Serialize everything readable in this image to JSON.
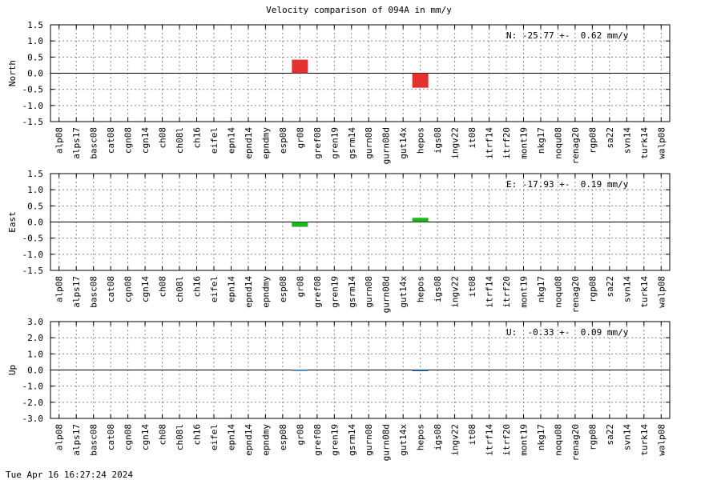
{
  "title": "Velocity comparison of 094A in mm/y",
  "footer": "Tue Apr 16 16:27:24 2024",
  "chart_data": [
    {
      "type": "bar",
      "ylabel": "North",
      "annotation": "N: -25.77 +-  0.62 mm/y",
      "ylim": [
        -1.5,
        1.5
      ],
      "yticks": [
        "1.5",
        "1.0",
        "0.5",
        "0.0",
        "-0.5",
        "-1.0",
        "-1.5"
      ],
      "color": "#e53030",
      "grid": true,
      "categories": [
        "alp08",
        "alps17",
        "basc08",
        "cat08",
        "cgn08",
        "cgn14",
        "ch08",
        "ch08l",
        "ch16",
        "eifel",
        "epn14",
        "epnd14",
        "epndmy",
        "esp08",
        "gr08",
        "gref08",
        "gren19",
        "gsrm14",
        "gurn08",
        "gurn08d",
        "gut14x",
        "hepos",
        "igs08",
        "ingv22",
        "it08",
        "itrf14",
        "itrf20",
        "mont19",
        "nkg17",
        "noqu08",
        "renag20",
        "rgp08",
        "sa22",
        "svn14",
        "turk14",
        "walp08"
      ],
      "values": [
        null,
        null,
        null,
        null,
        null,
        null,
        null,
        null,
        null,
        null,
        null,
        null,
        null,
        null,
        0.42,
        null,
        null,
        null,
        null,
        null,
        null,
        -0.45,
        null,
        null,
        null,
        null,
        null,
        null,
        null,
        null,
        null,
        null,
        null,
        null,
        null,
        null
      ]
    },
    {
      "type": "bar",
      "ylabel": "East",
      "annotation": "E: -17.93 +-  0.19 mm/y",
      "ylim": [
        -1.5,
        1.5
      ],
      "yticks": [
        "1.5",
        "1.0",
        "0.5",
        "0.0",
        "-0.5",
        "-1.0",
        "-1.5"
      ],
      "color": "#1fb51f",
      "grid": true,
      "categories": [
        "alp08",
        "alps17",
        "basc08",
        "cat08",
        "cgn08",
        "cgn14",
        "ch08",
        "ch08l",
        "ch16",
        "eifel",
        "epn14",
        "epnd14",
        "epndmy",
        "esp08",
        "gr08",
        "gref08",
        "gren19",
        "gsrm14",
        "gurn08",
        "gurn08d",
        "gut14x",
        "hepos",
        "igs08",
        "ingv22",
        "it08",
        "itrf14",
        "itrf20",
        "mont19",
        "nkg17",
        "noqu08",
        "renag20",
        "rgp08",
        "sa22",
        "svn14",
        "turk14",
        "walp08"
      ],
      "values": [
        null,
        null,
        null,
        null,
        null,
        null,
        null,
        null,
        null,
        null,
        null,
        null,
        null,
        null,
        -0.15,
        null,
        null,
        null,
        null,
        null,
        null,
        0.13,
        null,
        null,
        null,
        null,
        null,
        null,
        null,
        null,
        null,
        null,
        null,
        null,
        null,
        null
      ]
    },
    {
      "type": "bar",
      "ylabel": "Up",
      "annotation": "U:  -0.33 +-  0.09 mm/y",
      "ylim": [
        -3.0,
        3.0
      ],
      "yticks": [
        "3.0",
        "2.0",
        "1.0",
        "0.0",
        "-1.0",
        "-2.0",
        "-3.0"
      ],
      "color": "#2a6fbf",
      "grid": true,
      "categories": [
        "alp08",
        "alps17",
        "basc08",
        "cat08",
        "cgn08",
        "cgn14",
        "ch08",
        "ch08l",
        "ch16",
        "eifel",
        "epn14",
        "epnd14",
        "epndmy",
        "esp08",
        "gr08",
        "gref08",
        "gren19",
        "gsrm14",
        "gurn08",
        "gurn08d",
        "gut14x",
        "hepos",
        "igs08",
        "ingv22",
        "it08",
        "itrf14",
        "itrf20",
        "mont19",
        "nkg17",
        "noqu08",
        "renag20",
        "rgp08",
        "sa22",
        "svn14",
        "turk14",
        "walp08"
      ],
      "values": [
        null,
        null,
        null,
        null,
        null,
        null,
        null,
        null,
        null,
        null,
        null,
        null,
        null,
        null,
        0.02,
        null,
        null,
        null,
        null,
        null,
        null,
        -0.04,
        null,
        null,
        null,
        null,
        null,
        null,
        null,
        null,
        null,
        null,
        null,
        null,
        null,
        null
      ]
    }
  ]
}
